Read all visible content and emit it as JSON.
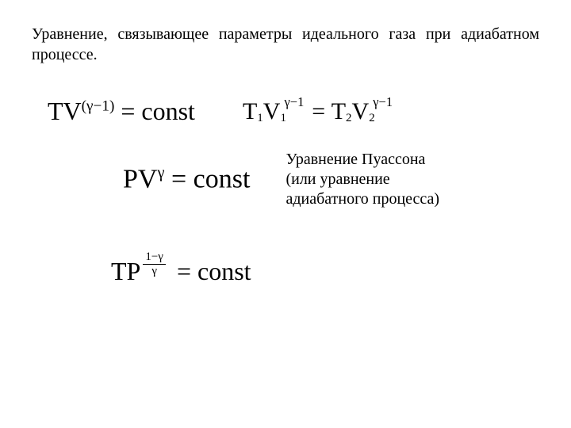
{
  "intro": "Уравнение, связывающее параметры идеального газа при адиабатном процессе.",
  "eq1": {
    "lhs_T": "T",
    "lhs_V": "V",
    "exp": "(γ−1)",
    "rhs": "= const"
  },
  "eq2": {
    "T1": "T",
    "sub1": "1",
    "V1": "V",
    "subV1": "1",
    "exp1": "γ−1",
    "eq": " = ",
    "T2": "T",
    "sub2": "2",
    "V2": "V",
    "subV2": "2",
    "exp2": "γ−1"
  },
  "eq3": {
    "P": "P",
    "V": "V",
    "exp": "γ",
    "rhs": " = const"
  },
  "description": {
    "line1": "Уравнение Пуассона",
    "line2": "(или уравнение",
    "line3": "адиабатного процесса)"
  },
  "eq4": {
    "TP": "TP",
    "frac_num": "1−γ",
    "frac_den": "γ",
    "rhs": "= const"
  },
  "style": {
    "background": "#ffffff",
    "text_color": "#000000",
    "intro_fontsize": 20,
    "eq_fontsize": 32,
    "font_family": "Times New Roman"
  }
}
